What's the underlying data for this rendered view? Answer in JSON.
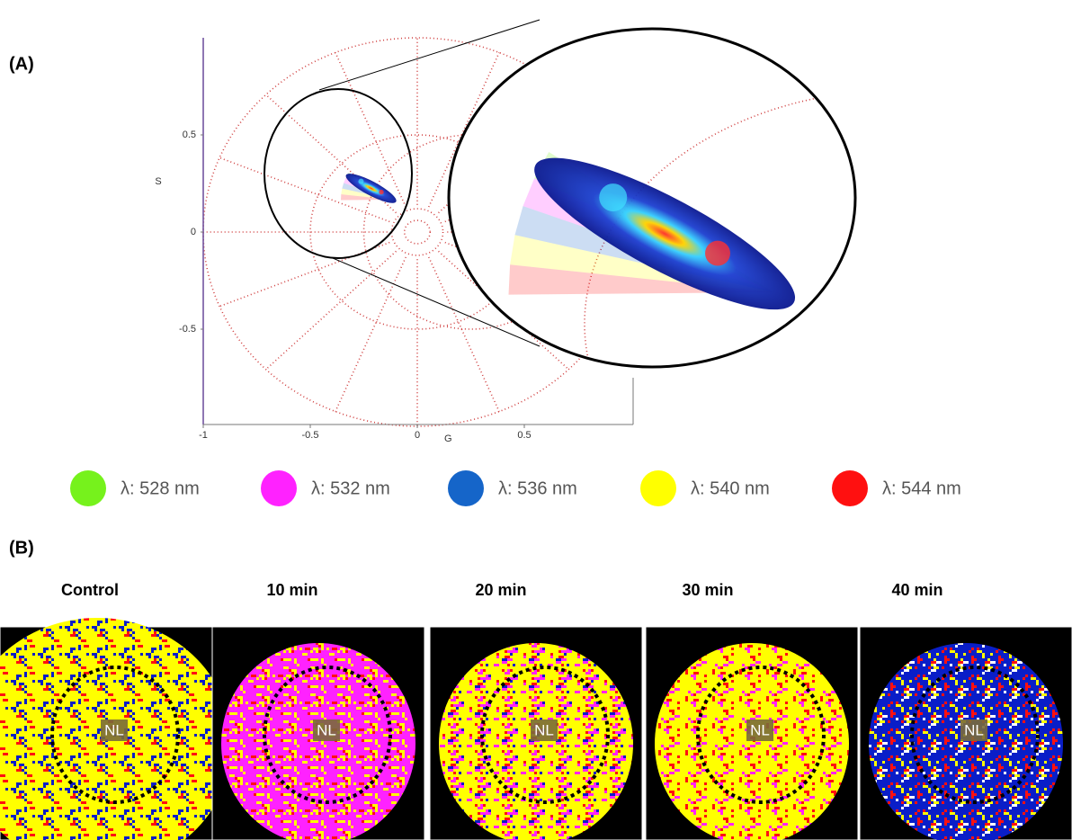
{
  "panel_labels": [
    "(A)",
    "(B)"
  ],
  "chart_data": {
    "type": "phasor",
    "x_label": "G",
    "y_label": "S",
    "xlim": [
      -1,
      1
    ],
    "ylim": [
      -1,
      1
    ],
    "xticks": [
      -1,
      -0.5,
      0,
      0.5
    ],
    "yticks": [
      -0.5,
      0,
      0.5
    ],
    "legend": [
      {
        "name": "λ: 528 nm",
        "color": "#76f21c"
      },
      {
        "name": "λ: 532 nm",
        "color": "#ff22ff"
      },
      {
        "name": "λ: 536 nm",
        "color": "#1565c9"
      },
      {
        "name": "λ: 540 nm",
        "color": "#ffff00"
      },
      {
        "name": "λ: 544 nm",
        "color": "#ff1010"
      }
    ]
  },
  "images": {
    "titles": [
      "Control",
      "10 min",
      "20 min",
      "30 min",
      "40 min"
    ],
    "region_label": "NL"
  }
}
